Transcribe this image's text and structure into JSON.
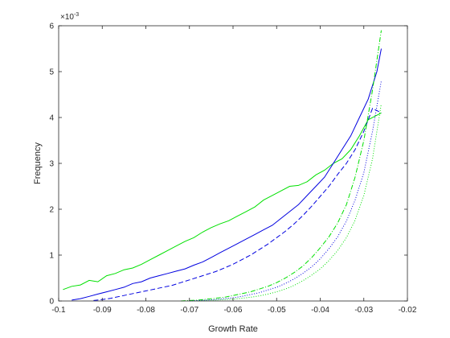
{
  "chart_data": {
    "type": "line",
    "title": "",
    "xlabel": "Growth Rate",
    "ylabel": "Frequency",
    "xlim": [
      -0.1,
      -0.02
    ],
    "ylim": [
      0,
      6
    ],
    "y_exponent_base": "×10",
    "y_exponent_power": "-3",
    "grid": false,
    "legend": "none",
    "x_ticks": [
      -0.1,
      -0.09,
      -0.08,
      -0.07,
      -0.06,
      -0.05,
      -0.04,
      -0.03,
      -0.02
    ],
    "x_tick_labels": [
      "-0.1",
      "-0.09",
      "-0.08",
      "-0.07",
      "-0.06",
      "-0.05",
      "-0.04",
      "-0.03",
      "-0.02"
    ],
    "y_ticks": [
      0,
      1,
      2,
      3,
      4,
      5,
      6
    ],
    "y_tick_labels": [
      "0",
      "1",
      "2",
      "3",
      "4",
      "5",
      "6"
    ],
    "series": [
      {
        "color": "#00e000",
        "style": "solid",
        "x": [
          -0.099,
          -0.097,
          -0.095,
          -0.093,
          -0.091,
          -0.089,
          -0.087,
          -0.085,
          -0.083,
          -0.081,
          -0.079,
          -0.077,
          -0.075,
          -0.073,
          -0.071,
          -0.069,
          -0.067,
          -0.065,
          -0.063,
          -0.061,
          -0.059,
          -0.057,
          -0.055,
          -0.053,
          -0.051,
          -0.049,
          -0.047,
          -0.045,
          -0.043,
          -0.041,
          -0.039,
          -0.037,
          -0.035,
          -0.033,
          -0.031,
          -0.029,
          -0.027,
          -0.026
        ],
        "y": [
          0.25,
          0.32,
          0.35,
          0.45,
          0.42,
          0.55,
          0.6,
          0.68,
          0.72,
          0.8,
          0.9,
          1.0,
          1.1,
          1.2,
          1.3,
          1.38,
          1.5,
          1.6,
          1.68,
          1.75,
          1.85,
          1.95,
          2.05,
          2.2,
          2.3,
          2.4,
          2.5,
          2.52,
          2.6,
          2.75,
          2.85,
          3.0,
          3.1,
          3.3,
          3.6,
          3.95,
          4.05,
          4.1
        ]
      },
      {
        "color": "#0000e0",
        "style": "solid",
        "x": [
          -0.097,
          -0.095,
          -0.093,
          -0.091,
          -0.089,
          -0.087,
          -0.085,
          -0.083,
          -0.081,
          -0.079,
          -0.077,
          -0.075,
          -0.073,
          -0.071,
          -0.069,
          -0.067,
          -0.065,
          -0.063,
          -0.061,
          -0.059,
          -0.057,
          -0.055,
          -0.053,
          -0.051,
          -0.049,
          -0.047,
          -0.045,
          -0.043,
          -0.041,
          -0.039,
          -0.037,
          -0.035,
          -0.033,
          -0.031,
          -0.029,
          -0.027,
          -0.026
        ],
        "y": [
          0.02,
          0.05,
          0.1,
          0.15,
          0.2,
          0.25,
          0.3,
          0.38,
          0.42,
          0.5,
          0.55,
          0.6,
          0.65,
          0.7,
          0.78,
          0.85,
          0.95,
          1.05,
          1.15,
          1.25,
          1.35,
          1.45,
          1.55,
          1.65,
          1.8,
          1.95,
          2.1,
          2.3,
          2.5,
          2.7,
          3.0,
          3.3,
          3.6,
          4.0,
          4.4,
          5.0,
          5.5
        ]
      },
      {
        "color": "#0000e0",
        "style": "dashed",
        "x": [
          -0.092,
          -0.09,
          -0.088,
          -0.086,
          -0.084,
          -0.082,
          -0.08,
          -0.078,
          -0.076,
          -0.074,
          -0.072,
          -0.07,
          -0.068,
          -0.066,
          -0.064,
          -0.062,
          -0.06,
          -0.058,
          -0.056,
          -0.054,
          -0.052,
          -0.05,
          -0.048,
          -0.046,
          -0.044,
          -0.042,
          -0.04,
          -0.038,
          -0.036,
          -0.034,
          -0.032,
          -0.03,
          -0.028,
          -0.026
        ],
        "y": [
          0.01,
          0.03,
          0.06,
          0.1,
          0.14,
          0.18,
          0.22,
          0.26,
          0.3,
          0.34,
          0.4,
          0.46,
          0.52,
          0.58,
          0.64,
          0.72,
          0.8,
          0.9,
          1.0,
          1.12,
          1.24,
          1.38,
          1.52,
          1.68,
          1.86,
          2.06,
          2.28,
          2.5,
          2.76,
          3.0,
          3.3,
          3.7,
          4.2,
          4.1
        ]
      },
      {
        "color": "#00e000",
        "style": "dashdot",
        "x": [
          -0.072,
          -0.07,
          -0.068,
          -0.066,
          -0.064,
          -0.062,
          -0.06,
          -0.058,
          -0.056,
          -0.054,
          -0.052,
          -0.05,
          -0.048,
          -0.046,
          -0.044,
          -0.042,
          -0.04,
          -0.038,
          -0.036,
          -0.034,
          -0.032,
          -0.03,
          -0.028,
          -0.026
        ],
        "y": [
          0.0,
          0.01,
          0.02,
          0.04,
          0.06,
          0.08,
          0.12,
          0.16,
          0.2,
          0.26,
          0.32,
          0.4,
          0.5,
          0.62,
          0.76,
          0.94,
          1.16,
          1.4,
          1.7,
          2.1,
          2.7,
          3.5,
          4.6,
          5.9
        ]
      },
      {
        "color": "#0000e0",
        "style": "dotted",
        "x": [
          -0.07,
          -0.068,
          -0.066,
          -0.064,
          -0.062,
          -0.06,
          -0.058,
          -0.056,
          -0.054,
          -0.052,
          -0.05,
          -0.048,
          -0.046,
          -0.044,
          -0.042,
          -0.04,
          -0.038,
          -0.036,
          -0.034,
          -0.032,
          -0.03,
          -0.028,
          -0.026
        ],
        "y": [
          0.0,
          0.01,
          0.02,
          0.03,
          0.05,
          0.07,
          0.1,
          0.14,
          0.18,
          0.24,
          0.3,
          0.38,
          0.48,
          0.6,
          0.74,
          0.92,
          1.14,
          1.4,
          1.74,
          2.2,
          2.8,
          3.7,
          4.8
        ]
      },
      {
        "color": "#00e000",
        "style": "dotted",
        "x": [
          -0.068,
          -0.066,
          -0.064,
          -0.062,
          -0.06,
          -0.058,
          -0.056,
          -0.054,
          -0.052,
          -0.05,
          -0.048,
          -0.046,
          -0.044,
          -0.042,
          -0.04,
          -0.038,
          -0.036,
          -0.034,
          -0.032,
          -0.03,
          -0.028,
          -0.026
        ],
        "y": [
          0.0,
          0.01,
          0.02,
          0.03,
          0.04,
          0.06,
          0.08,
          0.11,
          0.15,
          0.2,
          0.26,
          0.34,
          0.44,
          0.56,
          0.7,
          0.88,
          1.1,
          1.38,
          1.76,
          2.3,
          3.1,
          4.3
        ]
      }
    ]
  }
}
